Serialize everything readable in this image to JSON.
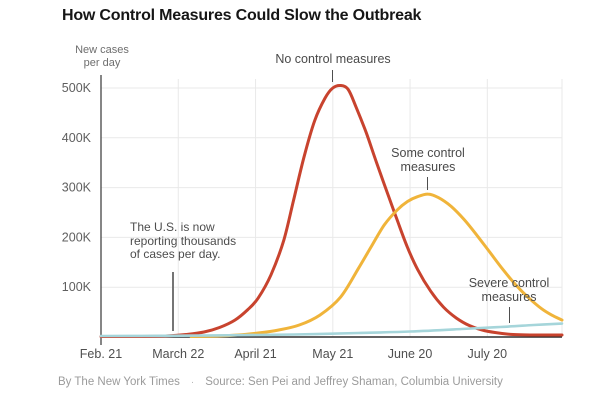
{
  "page": {
    "title": "How Control Measures Could Slow the Outbreak",
    "footer": {
      "byline": "By The New York Times",
      "separator": "·",
      "source": "Source: Sen Pei and Jeffrey Shaman, Columbia University"
    }
  },
  "chart_data": {
    "type": "line",
    "title": "How Control Measures Could Slow the Outbreak",
    "ylabel": "New cases per day",
    "xlabel": "",
    "unit": "thousands of new cases per day",
    "grid": true,
    "legend_position": "inline-annotations",
    "x_domain_days": [
      0,
      179
    ],
    "x_tick_days": [
      0,
      30,
      60,
      90,
      120,
      150
    ],
    "x_tick_labels": [
      "Feb. 21",
      "March 22",
      "April 21",
      "May 21",
      "June 20",
      "July 20"
    ],
    "y_tick_values": [
      100,
      200,
      300,
      400,
      500
    ],
    "y_tick_labels": [
      "100K",
      "200K",
      "300K",
      "400K",
      "500K"
    ],
    "ylim": [
      0,
      520
    ],
    "colors": {
      "no_control": "#c8432e",
      "some_control": "#f0b43a",
      "severe_control": "#a5d5da",
      "grid": "#e9e9e9",
      "axis": "#2e2e2e",
      "y_axis": "#454545"
    },
    "series": [
      {
        "name": "No control measures",
        "key": "no_control",
        "peak": {
          "value_k": 505,
          "day": 93,
          "near_label": "May 21"
        },
        "points_day_valueK": [
          [
            0,
            1
          ],
          [
            15,
            1
          ],
          [
            25,
            2
          ],
          [
            33,
            5
          ],
          [
            40,
            10
          ],
          [
            46,
            19
          ],
          [
            52,
            34
          ],
          [
            57,
            55
          ],
          [
            61,
            78
          ],
          [
            66,
            125
          ],
          [
            71,
            195
          ],
          [
            75,
            280
          ],
          [
            79,
            365
          ],
          [
            83,
            435
          ],
          [
            87,
            480
          ],
          [
            90,
            500
          ],
          [
            93,
            505
          ],
          [
            96,
            497
          ],
          [
            99,
            462
          ],
          [
            103,
            410
          ],
          [
            107,
            350
          ],
          [
            111,
            292
          ],
          [
            115,
            235
          ],
          [
            119,
            180
          ],
          [
            123,
            135
          ],
          [
            128,
            92
          ],
          [
            133,
            60
          ],
          [
            138,
            38
          ],
          [
            143,
            23
          ],
          [
            148,
            14
          ],
          [
            153,
            9
          ],
          [
            160,
            5
          ],
          [
            168,
            4
          ],
          [
            179,
            4
          ]
        ]
      },
      {
        "name": "Some control measures",
        "key": "some_control",
        "peak": {
          "value_k": 287,
          "day": 127,
          "near_label": "June 20"
        },
        "points_day_valueK": [
          [
            35,
            1
          ],
          [
            45,
            2
          ],
          [
            53,
            4
          ],
          [
            61,
            8
          ],
          [
            69,
            14
          ],
          [
            77,
            24
          ],
          [
            85,
            44
          ],
          [
            93,
            80
          ],
          [
            100,
            138
          ],
          [
            105,
            182
          ],
          [
            110,
            225
          ],
          [
            115,
            255
          ],
          [
            119,
            272
          ],
          [
            123,
            282
          ],
          [
            127,
            287
          ],
          [
            131,
            280
          ],
          [
            136,
            262
          ],
          [
            141,
            236
          ],
          [
            146,
            204
          ],
          [
            151,
            170
          ],
          [
            156,
            136
          ],
          [
            161,
            105
          ],
          [
            166,
            79
          ],
          [
            171,
            57
          ],
          [
            175,
            44
          ],
          [
            179,
            34
          ]
        ]
      },
      {
        "name": "Severe control measures",
        "key": "severe_control",
        "peak": {
          "value_k": 27,
          "day": 179,
          "near_label": "after July 20"
        },
        "points_day_valueK": [
          [
            0,
            2
          ],
          [
            25,
            2.5
          ],
          [
            50,
            3.5
          ],
          [
            75,
            5
          ],
          [
            100,
            8
          ],
          [
            120,
            11
          ],
          [
            140,
            16
          ],
          [
            155,
            20
          ],
          [
            168,
            24
          ],
          [
            179,
            27
          ]
        ]
      }
    ],
    "annotations": {
      "no_control": {
        "text": "No control measures"
      },
      "some_control": {
        "text": "Some control\nmeasures"
      },
      "severe_control": {
        "text": "Severe control\nmeasures"
      },
      "us_note": {
        "text": "The U.S. is now\nreporting thousands\nof cases per day."
      }
    }
  }
}
